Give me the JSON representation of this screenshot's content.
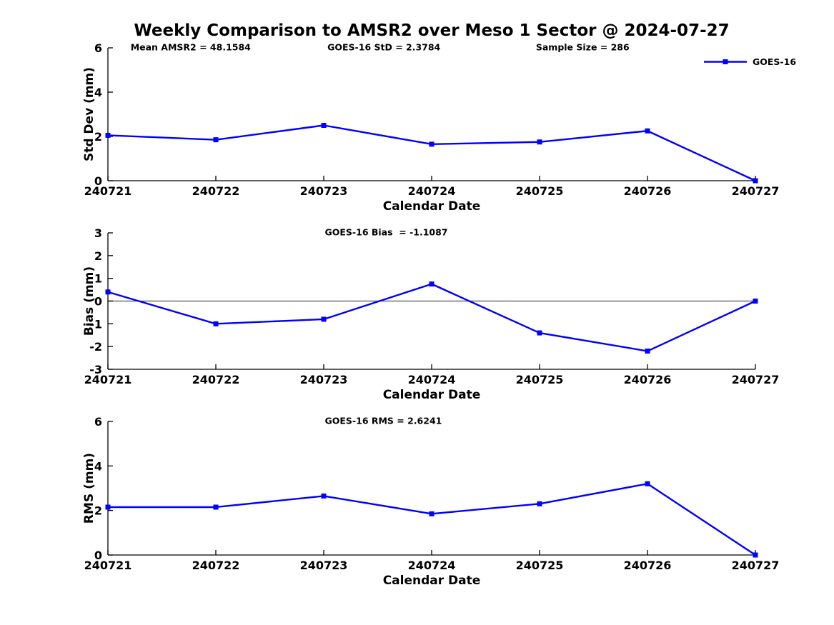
{
  "title": "Weekly Comparison to AMSR2 over Meso 1 Sector @ 2024-07-27",
  "legend": {
    "label": "GOES-16"
  },
  "colors": {
    "line": "#0000ff",
    "axis": "#000000",
    "zero_line": "#707070",
    "text": "#000000",
    "background": "#ffffff"
  },
  "chart_data": [
    {
      "id": "stddev",
      "type": "line",
      "categories": [
        "240721",
        "240722",
        "240723",
        "240724",
        "240725",
        "240726",
        "240727"
      ],
      "series": [
        {
          "name": "GOES-16",
          "marker": "square",
          "values": [
            2.05,
            1.85,
            2.5,
            1.65,
            1.75,
            2.25,
            0.0
          ]
        }
      ],
      "xlabel": "Calendar Date",
      "ylabel": "Std Dev (mm)",
      "ylim": [
        0,
        6
      ],
      "yticks": [
        0,
        2,
        4,
        6
      ],
      "grid": false,
      "zero_line": false,
      "legend_position": "top-right",
      "annotations": [
        {
          "text": "Mean AMSR2 = 48.1584",
          "xf": 0.035
        },
        {
          "text": "GOES-16 StD = 2.3784",
          "xf": 0.339
        },
        {
          "text": "Sample Size = 286",
          "xf": 0.661
        }
      ]
    },
    {
      "id": "bias",
      "type": "line",
      "categories": [
        "240721",
        "240722",
        "240723",
        "240724",
        "240725",
        "240726",
        "240727"
      ],
      "series": [
        {
          "name": "GOES-16",
          "marker": "square",
          "values": [
            0.4,
            -1.0,
            -0.8,
            0.75,
            -1.4,
            -2.2,
            0.0
          ]
        }
      ],
      "xlabel": "Calendar Date",
      "ylabel": "Bias (mm)",
      "ylim": [
        -3,
        3
      ],
      "yticks": [
        -3,
        -2,
        -1,
        0,
        1,
        2,
        3
      ],
      "grid": false,
      "zero_line": true,
      "annotations": [
        {
          "text": "GOES-16 Bias  = -1.1087",
          "xf": 0.335
        }
      ]
    },
    {
      "id": "rms",
      "type": "line",
      "categories": [
        "240721",
        "240722",
        "240723",
        "240724",
        "240725",
        "240726",
        "240727"
      ],
      "series": [
        {
          "name": "GOES-16",
          "marker": "square",
          "values": [
            2.15,
            2.15,
            2.65,
            1.85,
            2.3,
            3.2,
            0.0
          ]
        }
      ],
      "xlabel": "Calendar Date",
      "ylabel": "RMS (mm)",
      "ylim": [
        0,
        6
      ],
      "yticks": [
        0,
        2,
        4,
        6
      ],
      "grid": false,
      "zero_line": false,
      "annotations": [
        {
          "text": "GOES-16 RMS = 2.6241",
          "xf": 0.335
        }
      ]
    }
  ]
}
